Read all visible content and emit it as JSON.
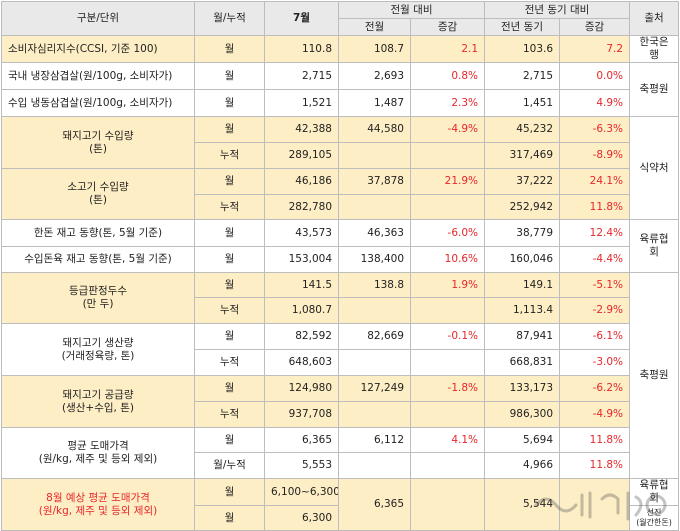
{
  "header": {
    "category": "구분/단위",
    "period": "월/누적",
    "month": "7월",
    "mom_group": "전월 대비",
    "yoy_group": "전년 동기 대비",
    "source": "출처",
    "prev_month": "전월",
    "change": "증감",
    "prev_year": "전년 동기",
    "change2": "증감"
  },
  "rows": {
    "r1": {
      "label": "소비자심리지수(CCSI, 기준 100)",
      "period": "월",
      "value": "110.8",
      "prev": "108.7",
      "mom": "2.1",
      "yoy_prev": "103.6",
      "yoy": "7.2"
    },
    "r2": {
      "label": "국내 냉장삼겹살(원/100g, 소비자가)",
      "period": "월",
      "value": "2,715",
      "prev": "2,693",
      "mom": "0.8%",
      "yoy_prev": "2,715",
      "yoy": "0.0%"
    },
    "r3": {
      "label": "수입 냉동삼겹살(원/100g, 소비자가)",
      "period": "월",
      "value": "1,521",
      "prev": "1,487",
      "mom": "2.3%",
      "yoy_prev": "1,451",
      "yoy": "4.9%"
    },
    "r4": {
      "label1": "돼지고기 수입량",
      "label2": "(톤)",
      "period_m": "월",
      "value_m": "42,388",
      "prev_m": "44,580",
      "mom_m": "-4.9%",
      "yoy_prev_m": "45,232",
      "yoy_m": "-6.3%",
      "period_c": "누적",
      "value_c": "289,105",
      "yoy_prev_c": "317,469",
      "yoy_c": "-8.9%"
    },
    "r5": {
      "label1": "소고기 수입량",
      "label2": "(톤)",
      "period_m": "월",
      "value_m": "46,186",
      "prev_m": "37,878",
      "mom_m": "21.9%",
      "yoy_prev_m": "37,222",
      "yoy_m": "24.1%",
      "period_c": "누적",
      "value_c": "282,780",
      "yoy_prev_c": "252,942",
      "yoy_c": "11.8%"
    },
    "r6": {
      "label": "한돈 재고 동향(톤, 5월 기준)",
      "period": "월",
      "value": "43,573",
      "prev": "46,363",
      "mom": "-6.0%",
      "yoy_prev": "38,779",
      "yoy": "12.4%"
    },
    "r7": {
      "label": "수입돈육 재고 동향(톤, 5월 기준)",
      "period": "월",
      "value": "153,004",
      "prev": "138,400",
      "mom": "10.6%",
      "yoy_prev": "160,046",
      "yoy": "-4.4%"
    },
    "r8": {
      "label1": "등급판정두수",
      "label2": "(만 두)",
      "period_m": "월",
      "value_m": "141.5",
      "prev_m": "138.8",
      "mom_m": "1.9%",
      "yoy_prev_m": "149.1",
      "yoy_m": "-5.1%",
      "period_c": "누적",
      "value_c": "1,080.7",
      "yoy_prev_c": "1,113.4",
      "yoy_c": "-2.9%"
    },
    "r9": {
      "label1": "돼지고기 생산량",
      "label2": "(거래정육량, 톤)",
      "period_m": "월",
      "value_m": "82,592",
      "prev_m": "82,669",
      "mom_m": "-0.1%",
      "yoy_prev_m": "87,941",
      "yoy_m": "-6.1%",
      "period_c": "누적",
      "value_c": "648,603",
      "yoy_prev_c": "668,831",
      "yoy_c": "-3.0%"
    },
    "r10": {
      "label1": "돼지고기 공급량",
      "label2": "(생산+수입, 톤)",
      "period_m": "월",
      "value_m": "124,980",
      "prev_m": "127,249",
      "mom_m": "-1.8%",
      "yoy_prev_m": "133,173",
      "yoy_m": "-6.2%",
      "period_c": "누적",
      "value_c": "937,708",
      "yoy_prev_c": "986,300",
      "yoy_c": "-4.9%"
    },
    "r11": {
      "label1": "평균 도매가격",
      "label2": "(원/kg, 제주 및 등외 제외)",
      "period_m": "월",
      "value_m": "6,365",
      "prev_m": "6,112",
      "mom_m": "4.1%",
      "yoy_prev_m": "5,694",
      "yoy_m": "11.8%",
      "period_c": "월/누적",
      "value_c": "5,553",
      "yoy_prev_c": "4,966",
      "yoy_c": "11.8%"
    },
    "r12": {
      "label1": "8월 예상 평균 도매가격",
      "label2": "(원/kg, 제주 및 등외 제외)",
      "period_a": "월",
      "value_a": "6,100~6,300",
      "prev": "6,365",
      "yoy_prev": "5,544",
      "period_b": "월",
      "value_b": "6,300"
    }
  },
  "sources": {
    "s1": "한국은행",
    "s2": "축평원",
    "s3": "식약처",
    "s4": "육류협회",
    "s5": "축평원",
    "s6": "육류협회",
    "s7": "선진\n(월간한돈)"
  },
  "colors": {
    "header_bg": "#e9e9e9",
    "highlight_bg": "#fdeec5",
    "negative_text": "#e8262a",
    "border": "#bdbdbd"
  }
}
